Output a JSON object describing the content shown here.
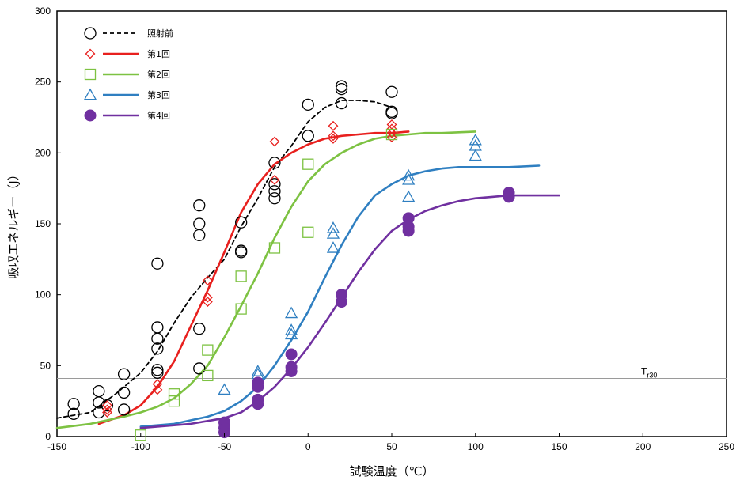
{
  "chart_data": {
    "type": "scatter",
    "xlabel": "試験温度（℃）",
    "ylabel": "吸収エネルギー（J）",
    "xlim": [
      -150,
      250
    ],
    "ylim": [
      0,
      300
    ],
    "xticks": [
      -150,
      -100,
      -50,
      0,
      50,
      100,
      150,
      200,
      250
    ],
    "yticks": [
      0,
      50,
      100,
      150,
      200,
      250,
      300
    ],
    "x_tick_labels": [
      "-150",
      "-100",
      "-50",
      "0",
      "50",
      "100",
      "150",
      "200",
      "250"
    ],
    "y_tick_labels": [
      "0",
      "50",
      "100",
      "150",
      "200",
      "250",
      "300"
    ],
    "grid": false,
    "legend_position": "top-left",
    "reference_line": {
      "y": 41,
      "label": "T",
      "label_sub": "r30"
    },
    "series": [
      {
        "name": "照射前",
        "marker": "circle-open",
        "line": "dashed",
        "color": "#000000",
        "points": [
          [
            -140,
            23
          ],
          [
            -140,
            16
          ],
          [
            -125,
            32
          ],
          [
            -125,
            24
          ],
          [
            -125,
            17
          ],
          [
            -120,
            22
          ],
          [
            -110,
            44
          ],
          [
            -110,
            31
          ],
          [
            -110,
            19
          ],
          [
            -90,
            122
          ],
          [
            -90,
            77
          ],
          [
            -90,
            69
          ],
          [
            -90,
            62
          ],
          [
            -90,
            47
          ],
          [
            -90,
            45
          ],
          [
            -65,
            163
          ],
          [
            -65,
            150
          ],
          [
            -65,
            142
          ],
          [
            -65,
            76
          ],
          [
            -65,
            48
          ],
          [
            -40,
            151
          ],
          [
            -40,
            131
          ],
          [
            -40,
            130
          ],
          [
            -20,
            193
          ],
          [
            -20,
            178
          ],
          [
            -20,
            173
          ],
          [
            -20,
            168
          ],
          [
            0,
            234
          ],
          [
            0,
            212
          ],
          [
            20,
            247
          ],
          [
            20,
            245
          ],
          [
            20,
            235
          ],
          [
            50,
            243
          ],
          [
            50,
            229
          ],
          [
            50,
            228
          ]
        ],
        "curve": [
          [
            -150,
            13
          ],
          [
            -130,
            17
          ],
          [
            -115,
            30
          ],
          [
            -100,
            45
          ],
          [
            -90,
            60
          ],
          [
            -80,
            80
          ],
          [
            -70,
            98
          ],
          [
            -60,
            112
          ],
          [
            -50,
            125
          ],
          [
            -40,
            148
          ],
          [
            -30,
            168
          ],
          [
            -20,
            190
          ],
          [
            -10,
            205
          ],
          [
            0,
            222
          ],
          [
            10,
            232
          ],
          [
            20,
            237
          ],
          [
            30,
            237
          ],
          [
            40,
            236
          ],
          [
            50,
            232
          ]
        ]
      },
      {
        "name": "第1回",
        "marker": "diamond-open",
        "line": "solid",
        "color": "#e8201e",
        "points": [
          [
            -120,
            22
          ],
          [
            -120,
            19
          ],
          [
            -120,
            17
          ],
          [
            -90,
            37
          ],
          [
            -90,
            33
          ],
          [
            -60,
            110
          ],
          [
            -60,
            98
          ],
          [
            -60,
            95
          ],
          [
            -20,
            208
          ],
          [
            -20,
            181
          ],
          [
            15,
            219
          ],
          [
            15,
            212
          ],
          [
            15,
            210
          ],
          [
            50,
            220
          ],
          [
            50,
            217
          ],
          [
            50,
            214
          ],
          [
            50,
            211
          ]
        ],
        "curve": [
          [
            -125,
            9
          ],
          [
            -110,
            15
          ],
          [
            -100,
            22
          ],
          [
            -90,
            35
          ],
          [
            -80,
            53
          ],
          [
            -70,
            78
          ],
          [
            -60,
            103
          ],
          [
            -50,
            130
          ],
          [
            -40,
            158
          ],
          [
            -30,
            178
          ],
          [
            -20,
            192
          ],
          [
            -10,
            200
          ],
          [
            0,
            206
          ],
          [
            10,
            210
          ],
          [
            20,
            212
          ],
          [
            30,
            213
          ],
          [
            40,
            214
          ],
          [
            50,
            214
          ],
          [
            60,
            215
          ]
        ]
      },
      {
        "name": "第2回",
        "marker": "square-open",
        "line": "solid",
        "color": "#7dc242",
        "points": [
          [
            -100,
            1
          ],
          [
            -80,
            30
          ],
          [
            -80,
            25
          ],
          [
            -60,
            61
          ],
          [
            -60,
            43
          ],
          [
            -40,
            113
          ],
          [
            -40,
            90
          ],
          [
            -20,
            133
          ],
          [
            0,
            192
          ],
          [
            0,
            144
          ],
          [
            50,
            213
          ]
        ],
        "curve": [
          [
            -150,
            6
          ],
          [
            -130,
            9
          ],
          [
            -110,
            14
          ],
          [
            -100,
            17
          ],
          [
            -90,
            21
          ],
          [
            -80,
            27
          ],
          [
            -70,
            37
          ],
          [
            -60,
            50
          ],
          [
            -50,
            70
          ],
          [
            -40,
            92
          ],
          [
            -30,
            115
          ],
          [
            -20,
            140
          ],
          [
            -10,
            162
          ],
          [
            0,
            180
          ],
          [
            10,
            192
          ],
          [
            20,
            200
          ],
          [
            30,
            206
          ],
          [
            40,
            210
          ],
          [
            50,
            212
          ],
          [
            60,
            213
          ],
          [
            70,
            214
          ],
          [
            80,
            214
          ],
          [
            100,
            215
          ]
        ]
      },
      {
        "name": "第3回",
        "marker": "triangle-open",
        "line": "solid",
        "color": "#2f7fc1",
        "points": [
          [
            -50,
            33
          ],
          [
            -30,
            46
          ],
          [
            -30,
            44
          ],
          [
            -10,
            87
          ],
          [
            -10,
            75
          ],
          [
            -10,
            72
          ],
          [
            15,
            147
          ],
          [
            15,
            143
          ],
          [
            15,
            133
          ],
          [
            60,
            184
          ],
          [
            60,
            181
          ],
          [
            60,
            169
          ],
          [
            100,
            209
          ],
          [
            100,
            205
          ],
          [
            100,
            198
          ]
        ],
        "curve": [
          [
            -100,
            7
          ],
          [
            -80,
            9
          ],
          [
            -60,
            14
          ],
          [
            -50,
            18
          ],
          [
            -40,
            25
          ],
          [
            -30,
            35
          ],
          [
            -20,
            50
          ],
          [
            -10,
            68
          ],
          [
            0,
            88
          ],
          [
            10,
            112
          ],
          [
            20,
            135
          ],
          [
            30,
            155
          ],
          [
            40,
            170
          ],
          [
            50,
            178
          ],
          [
            60,
            184
          ],
          [
            70,
            187
          ],
          [
            80,
            189
          ],
          [
            90,
            190
          ],
          [
            100,
            190
          ],
          [
            120,
            190
          ],
          [
            138,
            191
          ]
        ]
      },
      {
        "name": "第4回",
        "marker": "circle-filled",
        "line": "solid",
        "color": "#7030a0",
        "points": [
          [
            -50,
            10
          ],
          [
            -50,
            6
          ],
          [
            -50,
            3
          ],
          [
            -30,
            38
          ],
          [
            -30,
            35
          ],
          [
            -30,
            26
          ],
          [
            -30,
            23
          ],
          [
            -10,
            58
          ],
          [
            -10,
            49
          ],
          [
            -10,
            46
          ],
          [
            20,
            100
          ],
          [
            20,
            95
          ],
          [
            60,
            154
          ],
          [
            60,
            148
          ],
          [
            60,
            145
          ],
          [
            120,
            172
          ],
          [
            120,
            169
          ]
        ],
        "curve": [
          [
            -100,
            6
          ],
          [
            -80,
            8
          ],
          [
            -70,
            9
          ],
          [
            -60,
            11
          ],
          [
            -50,
            13
          ],
          [
            -40,
            17
          ],
          [
            -30,
            25
          ],
          [
            -20,
            35
          ],
          [
            -10,
            48
          ],
          [
            0,
            63
          ],
          [
            10,
            80
          ],
          [
            20,
            98
          ],
          [
            30,
            116
          ],
          [
            40,
            132
          ],
          [
            50,
            145
          ],
          [
            60,
            153
          ],
          [
            70,
            159
          ],
          [
            80,
            163
          ],
          [
            90,
            166
          ],
          [
            100,
            168
          ],
          [
            110,
            169
          ],
          [
            120,
            170
          ],
          [
            130,
            170
          ],
          [
            150,
            170
          ]
        ]
      }
    ]
  }
}
